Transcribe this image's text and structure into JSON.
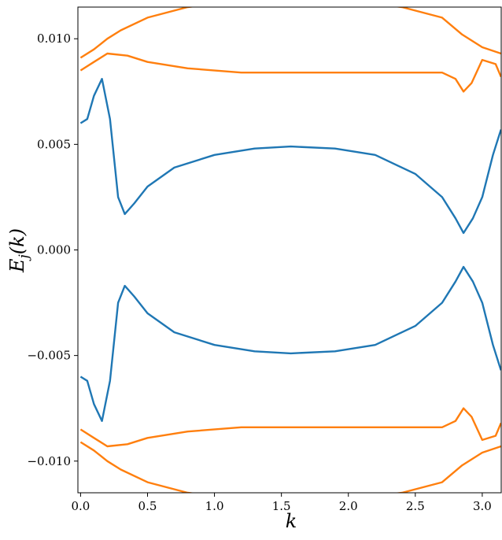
{
  "chart_data": {
    "type": "line",
    "title": "",
    "xlabel": "k",
    "ylabel": "E_j(k)",
    "ylabel_parts": {
      "main": "E",
      "sub": "j",
      "rest": "(k)"
    },
    "xlim": [
      -0.02,
      3.1416
    ],
    "ylim": [
      -0.0115,
      0.0115
    ],
    "x_ticks": [
      0.0,
      0.5,
      1.0,
      1.5,
      2.0,
      2.5,
      3.0
    ],
    "x_tick_labels": [
      "0.0",
      "0.5",
      "1.0",
      "1.5",
      "2.0",
      "2.5",
      "3.0"
    ],
    "y_ticks": [
      -0.01,
      -0.005,
      0.0,
      0.005,
      0.01
    ],
    "y_tick_labels": [
      "−0.010",
      "−0.005",
      "0.000",
      "0.005",
      "0.010"
    ],
    "grid": false,
    "legend": "none",
    "colors": {
      "low_band": "#1f77b4",
      "bulk_bands": "#ff7f0e"
    },
    "series": [
      {
        "color": "#1f77b4",
        "x": [
          0.0,
          0.05,
          0.1,
          0.16,
          0.22,
          0.28,
          0.33,
          0.4,
          0.5,
          0.7,
          1.0,
          1.3,
          1.57,
          1.9,
          2.2,
          2.5,
          2.7,
          2.8,
          2.86,
          2.93,
          3.0,
          3.08,
          3.14
        ],
        "y": [
          0.006,
          0.0062,
          0.0073,
          0.0081,
          0.0062,
          0.0025,
          0.0017,
          0.0022,
          0.003,
          0.0039,
          0.0045,
          0.0048,
          0.0049,
          0.0048,
          0.0045,
          0.0036,
          0.0025,
          0.0015,
          0.0008,
          0.0015,
          0.0025,
          0.0045,
          0.0057
        ]
      },
      {
        "color": "#1f77b4",
        "x": [
          0.0,
          0.05,
          0.1,
          0.16,
          0.22,
          0.28,
          0.33,
          0.4,
          0.5,
          0.7,
          1.0,
          1.3,
          1.57,
          1.9,
          2.2,
          2.5,
          2.7,
          2.8,
          2.86,
          2.93,
          3.0,
          3.08,
          3.14
        ],
        "y": [
          -0.006,
          -0.0062,
          -0.0073,
          -0.0081,
          -0.0062,
          -0.0025,
          -0.0017,
          -0.0022,
          -0.003,
          -0.0039,
          -0.0045,
          -0.0048,
          -0.0049,
          -0.0048,
          -0.0045,
          -0.0036,
          -0.0025,
          -0.0015,
          -0.0008,
          -0.0015,
          -0.0025,
          -0.0045,
          -0.0057
        ]
      },
      {
        "color": "#ff7f0e",
        "x": [
          0.0,
          0.1,
          0.2,
          0.35,
          0.5,
          0.8,
          1.2,
          1.57,
          2.0,
          2.4,
          2.7,
          2.8,
          2.86,
          2.92,
          3.0,
          3.1,
          3.14
        ],
        "y": [
          0.0085,
          0.0089,
          0.0093,
          0.0092,
          0.0089,
          0.0086,
          0.0084,
          0.0084,
          0.0084,
          0.0084,
          0.0084,
          0.0081,
          0.0075,
          0.0079,
          0.009,
          0.0088,
          0.0082
        ]
      },
      {
        "color": "#ff7f0e",
        "x": [
          0.0,
          0.1,
          0.2,
          0.35,
          0.5,
          0.8,
          1.2,
          1.57,
          2.0,
          2.4,
          2.7,
          2.8,
          2.86,
          2.92,
          3.0,
          3.1,
          3.14
        ],
        "y": [
          -0.0085,
          -0.0089,
          -0.0093,
          -0.0092,
          -0.0089,
          -0.0086,
          -0.0084,
          -0.0084,
          -0.0084,
          -0.0084,
          -0.0084,
          -0.0081,
          -0.0075,
          -0.0079,
          -0.009,
          -0.0088,
          -0.0082
        ]
      },
      {
        "color": "#ff7f0e",
        "x": [
          0.0,
          0.1,
          0.2,
          0.3,
          0.5,
          0.8,
          1.2,
          1.57,
          2.0,
          2.4,
          2.7,
          2.85,
          3.0,
          3.14
        ],
        "y": [
          0.0091,
          0.0095,
          0.01,
          0.0104,
          0.011,
          0.0115,
          0.0118,
          0.0119,
          0.0118,
          0.0115,
          0.011,
          0.0102,
          0.0096,
          0.0093
        ]
      },
      {
        "color": "#ff7f0e",
        "x": [
          0.0,
          0.1,
          0.2,
          0.3,
          0.5,
          0.8,
          1.2,
          1.57,
          2.0,
          2.4,
          2.7,
          2.85,
          3.0,
          3.14
        ],
        "y": [
          -0.0091,
          -0.0095,
          -0.01,
          -0.0104,
          -0.011,
          -0.0115,
          -0.0118,
          -0.0119,
          -0.0118,
          -0.0115,
          -0.011,
          -0.0102,
          -0.0096,
          -0.0093
        ]
      }
    ]
  }
}
